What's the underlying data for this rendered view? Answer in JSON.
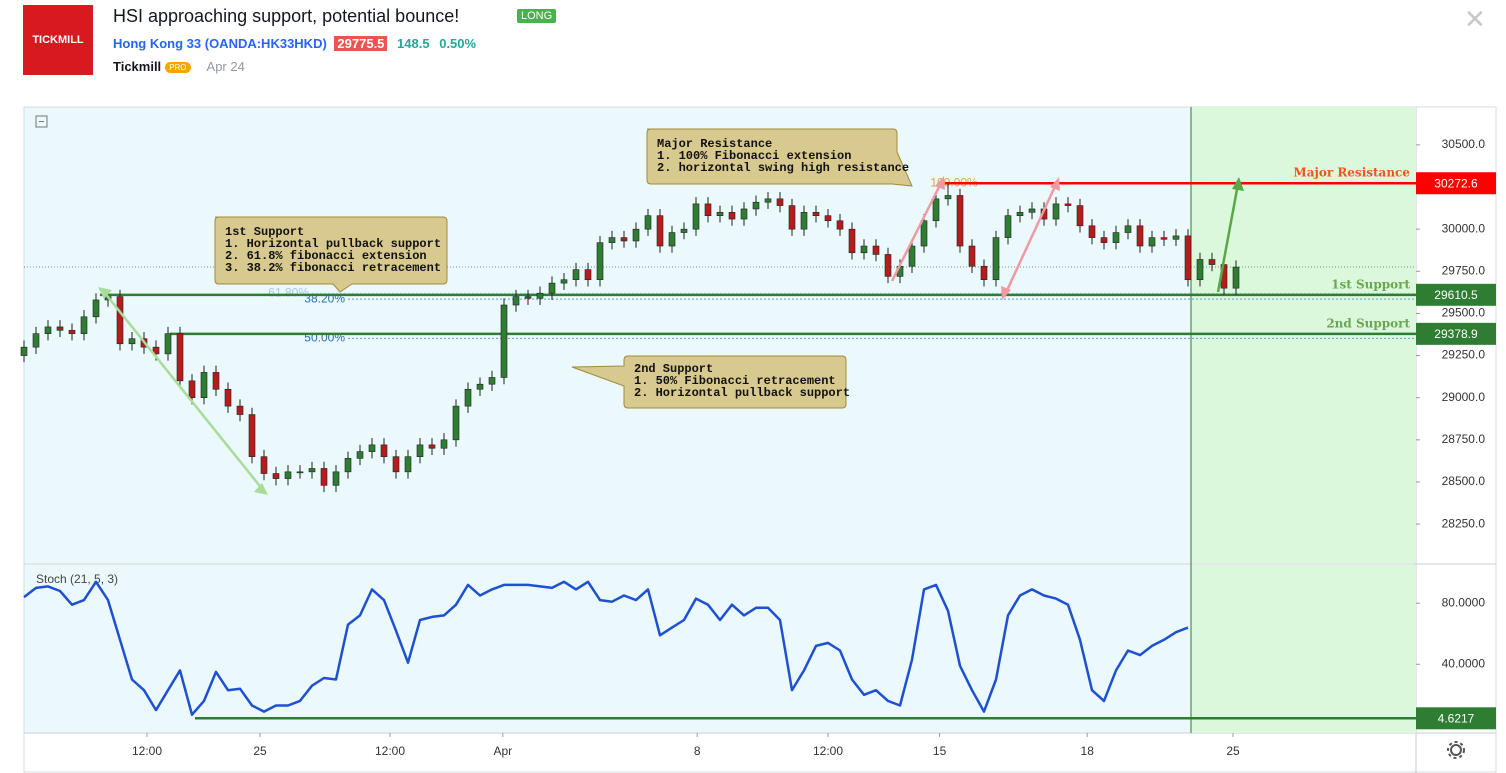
{
  "header": {
    "title": "HSI approaching support, potential bounce!",
    "tag": "LONG",
    "logo": "TICKMILL",
    "symbol": "Hong Kong 33",
    "ticker": "(OANDA:HK33HKD)",
    "price": 29775.5,
    "change": 148.5,
    "change_pct": "0.50%",
    "author": "Tickmill",
    "badge": "PRO",
    "date": "Apr 24"
  },
  "chart_data": {
    "type": "candlestick",
    "xlim": [
      0,
      116
    ],
    "xticks": [
      {
        "value": 10.25,
        "label": "12:00"
      },
      {
        "value": 19.67,
        "label": "25"
      },
      {
        "value": 30.5,
        "label": "12:00"
      },
      {
        "value": 39.9,
        "label": "Apr"
      },
      {
        "value": 56.1,
        "label": "8"
      },
      {
        "value": 67,
        "label": "12:00"
      },
      {
        "value": 76.3,
        "label": "15"
      },
      {
        "value": 88.6,
        "label": "18"
      },
      {
        "value": 100.75,
        "label": "25"
      }
    ],
    "ylim": [
      28025,
      30725
    ],
    "yticks": [
      {
        "value": 30500,
        "label": "30500.0"
      },
      {
        "value": 30000,
        "label": "30000.0"
      },
      {
        "value": 29750,
        "label": "29750.0"
      },
      {
        "value": 29500,
        "label": "29500.0"
      },
      {
        "value": 29250,
        "label": "29250.0"
      },
      {
        "value": 29000,
        "label": "29000.0"
      },
      {
        "value": 28750,
        "label": "28750.0"
      },
      {
        "value": 28500,
        "label": "28500.0"
      },
      {
        "value": 28250,
        "label": "28250.0"
      }
    ],
    "up_color": "#2e7d32",
    "down_color": "#b71c1c",
    "open": [
      29250,
      29300,
      29380,
      29420,
      29400,
      29380,
      29480,
      29580,
      29600,
      29320,
      29350,
      29300,
      29260,
      29380,
      29100,
      29000,
      29150,
      29050,
      28950,
      28900,
      28650,
      28550,
      28520,
      28560,
      28560,
      28580,
      28480,
      28560,
      28640,
      28680,
      28720,
      28650,
      28560,
      28650,
      28720,
      28700,
      28750,
      28950,
      29050,
      29080,
      29120,
      29550,
      29600,
      29590,
      29620,
      29680,
      29700,
      29760,
      29700,
      29920,
      29950,
      29930,
      30000,
      30080,
      29900,
      29980,
      30000,
      30150,
      30080,
      30100,
      30060,
      30120,
      30160,
      30180,
      30140,
      30000,
      30100,
      30080,
      30050,
      30000,
      29860,
      29900,
      29850,
      29720,
      29780,
      29900,
      30050,
      30180,
      30200,
      29900,
      29780,
      29700,
      29950,
      30080,
      30100,
      30120,
      30060,
      30150,
      30140,
      30020,
      29950,
      29920,
      29980,
      30020,
      29900,
      29950,
      29940,
      29960,
      29700,
      29820,
      29790,
      29650
    ],
    "high": [
      29340,
      29420,
      29460,
      29460,
      29440,
      29520,
      29620,
      29640,
      29640,
      29390,
      29390,
      29340,
      29420,
      29420,
      29140,
      29190,
      29190,
      29090,
      28990,
      28940,
      28690,
      28590,
      28600,
      28600,
      28620,
      28620,
      28600,
      28680,
      28720,
      28760,
      28760,
      28690,
      28690,
      28760,
      28760,
      28790,
      28990,
      29090,
      29120,
      29160,
      29590,
      29640,
      29640,
      29660,
      29720,
      29740,
      29800,
      29800,
      29960,
      29990,
      29990,
      30040,
      30120,
      30120,
      30020,
      30040,
      30190,
      30190,
      30140,
      30140,
      30160,
      30200,
      30220,
      30220,
      30180,
      30140,
      30140,
      30120,
      30090,
      30040,
      29940,
      29940,
      29890,
      29820,
      29940,
      30090,
      30220,
      30270,
      30240,
      29940,
      29820,
      29990,
      30120,
      30140,
      30160,
      30160,
      30190,
      30190,
      30180,
      30060,
      29990,
      30020,
      30060,
      30060,
      29990,
      29990,
      30000,
      30000,
      29860,
      29860,
      29830,
      29815
    ],
    "low": [
      29210,
      29260,
      29340,
      29360,
      29340,
      29340,
      29440,
      29540,
      29280,
      29280,
      29260,
      29220,
      29220,
      29060,
      28960,
      28960,
      29010,
      28910,
      28860,
      28610,
      28510,
      28480,
      28480,
      28520,
      28520,
      28440,
      28440,
      28520,
      28600,
      28640,
      28610,
      28520,
      28520,
      28610,
      28660,
      28660,
      28710,
      28910,
      29010,
      29040,
      29080,
      29510,
      29550,
      29550,
      29580,
      29640,
      29660,
      29660,
      29660,
      29880,
      29890,
      29890,
      29960,
      29860,
      29860,
      29940,
      29960,
      30040,
      30040,
      30020,
      30020,
      30080,
      30120,
      30100,
      29960,
      29960,
      30040,
      30010,
      29960,
      29820,
      29820,
      29810,
      29680,
      29680,
      29740,
      29860,
      30010,
      30140,
      29860,
      29740,
      29660,
      29660,
      29910,
      30040,
      30060,
      30020,
      30020,
      30100,
      29980,
      29910,
      29880,
      29880,
      29940,
      29860,
      29860,
      29900,
      29900,
      29660,
      29660,
      29750,
      29610,
      29610
    ],
    "close": [
      29300,
      29380,
      29420,
      29400,
      29380,
      29480,
      29580,
      29600,
      29320,
      29350,
      29300,
      29260,
      29380,
      29100,
      29000,
      29150,
      29050,
      28950,
      28900,
      28650,
      28550,
      28520,
      28560,
      28560,
      28580,
      28480,
      28560,
      28640,
      28680,
      28720,
      28650,
      28560,
      28650,
      28720,
      28700,
      28750,
      28950,
      29050,
      29080,
      29120,
      29550,
      29600,
      29590,
      29620,
      29680,
      29700,
      29760,
      29700,
      29920,
      29950,
      29930,
      30000,
      30080,
      29900,
      29980,
      30000,
      30150,
      30080,
      30100,
      30060,
      30120,
      30160,
      30180,
      30140,
      30000,
      30100,
      30080,
      30050,
      30000,
      29860,
      29900,
      29850,
      29720,
      29780,
      29900,
      30050,
      30180,
      30200,
      29900,
      29780,
      29700,
      29950,
      30080,
      30100,
      30120,
      30060,
      30150,
      30140,
      30020,
      29950,
      29920,
      29980,
      30020,
      29900,
      29950,
      29940,
      29960,
      29700,
      29820,
      29790,
      29650,
      29775
    ],
    "levels": [
      {
        "name": "Major Resistance",
        "value": 30272.6,
        "x_start": 76.75,
        "color": "#ff0000",
        "label_color": "#f2541b"
      },
      {
        "name": "1st Support",
        "value": 29610.5,
        "x_start": 6.33,
        "color": "#2e7d32",
        "label_color": "#6aa84f"
      },
      {
        "name": "2nd Support",
        "value": 29378.9,
        "x_start": 12.17,
        "color": "#2e7d32",
        "label_color": "#6aa84f"
      }
    ],
    "fib_levels": [
      {
        "label": "61.80%",
        "value": 29620,
        "x_start": 24
      },
      {
        "label": "38.20%",
        "value": 29585,
        "x_start": 27
      },
      {
        "label": "50.00%",
        "value": 29352,
        "x_start": 27
      },
      {
        "label": "100.00%",
        "value": 30272.6,
        "x_start": 77.5
      }
    ],
    "projection_zone": [
      97.25,
      116
    ],
    "annotations": [
      {
        "lines": [
          "Major  Resistance",
          "1. 100% Fibonacci extension",
          "2. horizontal swing high resistance"
        ]
      },
      {
        "lines": [
          "1st Support",
          "1.  Horizontal pullback support",
          "2. 61.8% fibonacci extension",
          "3. 38.2% fibonacci retracement"
        ]
      },
      {
        "lines": [
          "2nd Support",
          "1. 50% Fibonacci retracement",
          "2. Horizontal pullback support"
        ]
      }
    ],
    "stoch": {
      "title": "Stoch (21, 5, 3)",
      "color": "#1e50d2",
      "ylim": [
        -5,
        105
      ],
      "yticks": [
        {
          "value": 80,
          "label": "80.0000"
        },
        {
          "value": 40,
          "label": "40.0000"
        }
      ],
      "values": [
        84,
        90,
        91,
        88,
        79,
        82,
        94,
        82,
        56,
        30,
        23,
        10,
        23,
        36,
        7,
        16,
        35,
        23,
        24,
        13,
        9,
        13,
        13,
        16,
        26,
        31,
        30,
        66,
        72,
        89,
        82,
        62,
        41,
        69,
        71,
        72,
        79,
        92,
        85,
        89,
        92,
        92,
        92,
        91,
        90,
        94,
        89,
        94,
        82,
        81,
        85,
        82,
        89,
        59,
        64,
        69,
        83,
        79,
        69,
        79,
        72,
        77,
        77,
        69,
        23,
        36,
        52,
        54,
        49,
        30,
        20,
        23,
        16,
        13,
        43,
        89,
        92,
        75,
        39,
        23,
        9,
        30,
        72,
        85,
        89,
        85,
        83,
        79,
        56,
        23,
        16,
        36,
        49,
        46,
        52,
        56,
        61,
        64,
        null,
        null,
        null,
        null
      ],
      "level": {
        "value": 4.6217,
        "x_start": 14.25,
        "color": "#2e7d32"
      }
    }
  }
}
